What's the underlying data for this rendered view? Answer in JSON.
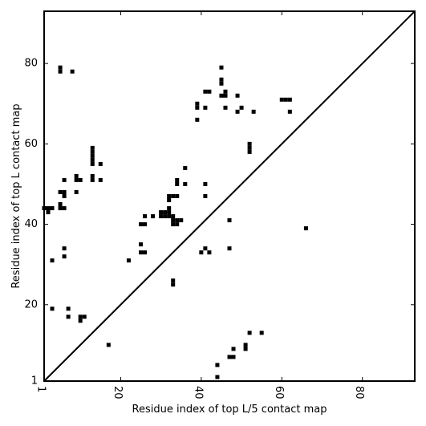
{
  "chart_data": {
    "type": "scatter",
    "xlabel": "Residue index of top L/5 contact map",
    "ylabel": "Residue index of top L contact map",
    "xlim": [
      1,
      93
    ],
    "ylim": [
      1,
      93
    ],
    "x_ticks": [
      1,
      20,
      40,
      60,
      80
    ],
    "y_ticks": [
      1,
      20,
      40,
      60,
      80
    ],
    "x_tick_labels": [
      "1",
      "20",
      "40",
      "60",
      "80"
    ],
    "y_tick_labels": [
      "1",
      "20",
      "40",
      "60",
      "80"
    ],
    "diagonal": true,
    "grid": false,
    "marker": "square",
    "color": "#000000",
    "points": [
      [
        1,
        44
      ],
      [
        2,
        44
      ],
      [
        3,
        44
      ],
      [
        2,
        43
      ],
      [
        5,
        48
      ],
      [
        6,
        48
      ],
      [
        5,
        45
      ],
      [
        6,
        44
      ],
      [
        5,
        44
      ],
      [
        6,
        47
      ],
      [
        5,
        79
      ],
      [
        5,
        78
      ],
      [
        8,
        78
      ],
      [
        6,
        51
      ],
      [
        9,
        52
      ],
      [
        9,
        51
      ],
      [
        10,
        51
      ],
      [
        9,
        48
      ],
      [
        13,
        59
      ],
      [
        13,
        58
      ],
      [
        13,
        57
      ],
      [
        13,
        56
      ],
      [
        13,
        55
      ],
      [
        13,
        52
      ],
      [
        13,
        51
      ],
      [
        15,
        55
      ],
      [
        15,
        51
      ],
      [
        6,
        34
      ],
      [
        6,
        32
      ],
      [
        3,
        31
      ],
      [
        3,
        19
      ],
      [
        7,
        19
      ],
      [
        7,
        17
      ],
      [
        10,
        17
      ],
      [
        11,
        17
      ],
      [
        10,
        16
      ],
      [
        17,
        10
      ],
      [
        22,
        31
      ],
      [
        25,
        35
      ],
      [
        25,
        33
      ],
      [
        26,
        33
      ],
      [
        25,
        40
      ],
      [
        26,
        40
      ],
      [
        26,
        42
      ],
      [
        28,
        42
      ],
      [
        30,
        43
      ],
      [
        31,
        43
      ],
      [
        30,
        42
      ],
      [
        31,
        42
      ],
      [
        32,
        44
      ],
      [
        32,
        43
      ],
      [
        32,
        42
      ],
      [
        33,
        42
      ],
      [
        32,
        47
      ],
      [
        32,
        46
      ],
      [
        33,
        47
      ],
      [
        34,
        47
      ],
      [
        33,
        41
      ],
      [
        34,
        41
      ],
      [
        33,
        40
      ],
      [
        34,
        40
      ],
      [
        35,
        41
      ],
      [
        33,
        26
      ],
      [
        33,
        25
      ],
      [
        34,
        51
      ],
      [
        34,
        50
      ],
      [
        36,
        54
      ],
      [
        36,
        50
      ],
      [
        39,
        70
      ],
      [
        39,
        69
      ],
      [
        39,
        66
      ],
      [
        41,
        73
      ],
      [
        42,
        73
      ],
      [
        41,
        69
      ],
      [
        41,
        50
      ],
      [
        41,
        47
      ],
      [
        40,
        33
      ],
      [
        41,
        34
      ],
      [
        42,
        33
      ],
      [
        45,
        79
      ],
      [
        45,
        76
      ],
      [
        45,
        75
      ],
      [
        45,
        72
      ],
      [
        46,
        73
      ],
      [
        46,
        72
      ],
      [
        46,
        69
      ],
      [
        47,
        41
      ],
      [
        47,
        34
      ],
      [
        49,
        72
      ],
      [
        49,
        68
      ],
      [
        50,
        69
      ],
      [
        52,
        60
      ],
      [
        52,
        59
      ],
      [
        52,
        58
      ],
      [
        53,
        68
      ],
      [
        60,
        71
      ],
      [
        61,
        71
      ],
      [
        62,
        71
      ],
      [
        62,
        68
      ],
      [
        66,
        39
      ],
      [
        44,
        5
      ],
      [
        44,
        2
      ],
      [
        47,
        7
      ],
      [
        48,
        7
      ],
      [
        48,
        9
      ],
      [
        51,
        10
      ],
      [
        51,
        9
      ],
      [
        52,
        13
      ],
      [
        55,
        13
      ]
    ]
  }
}
